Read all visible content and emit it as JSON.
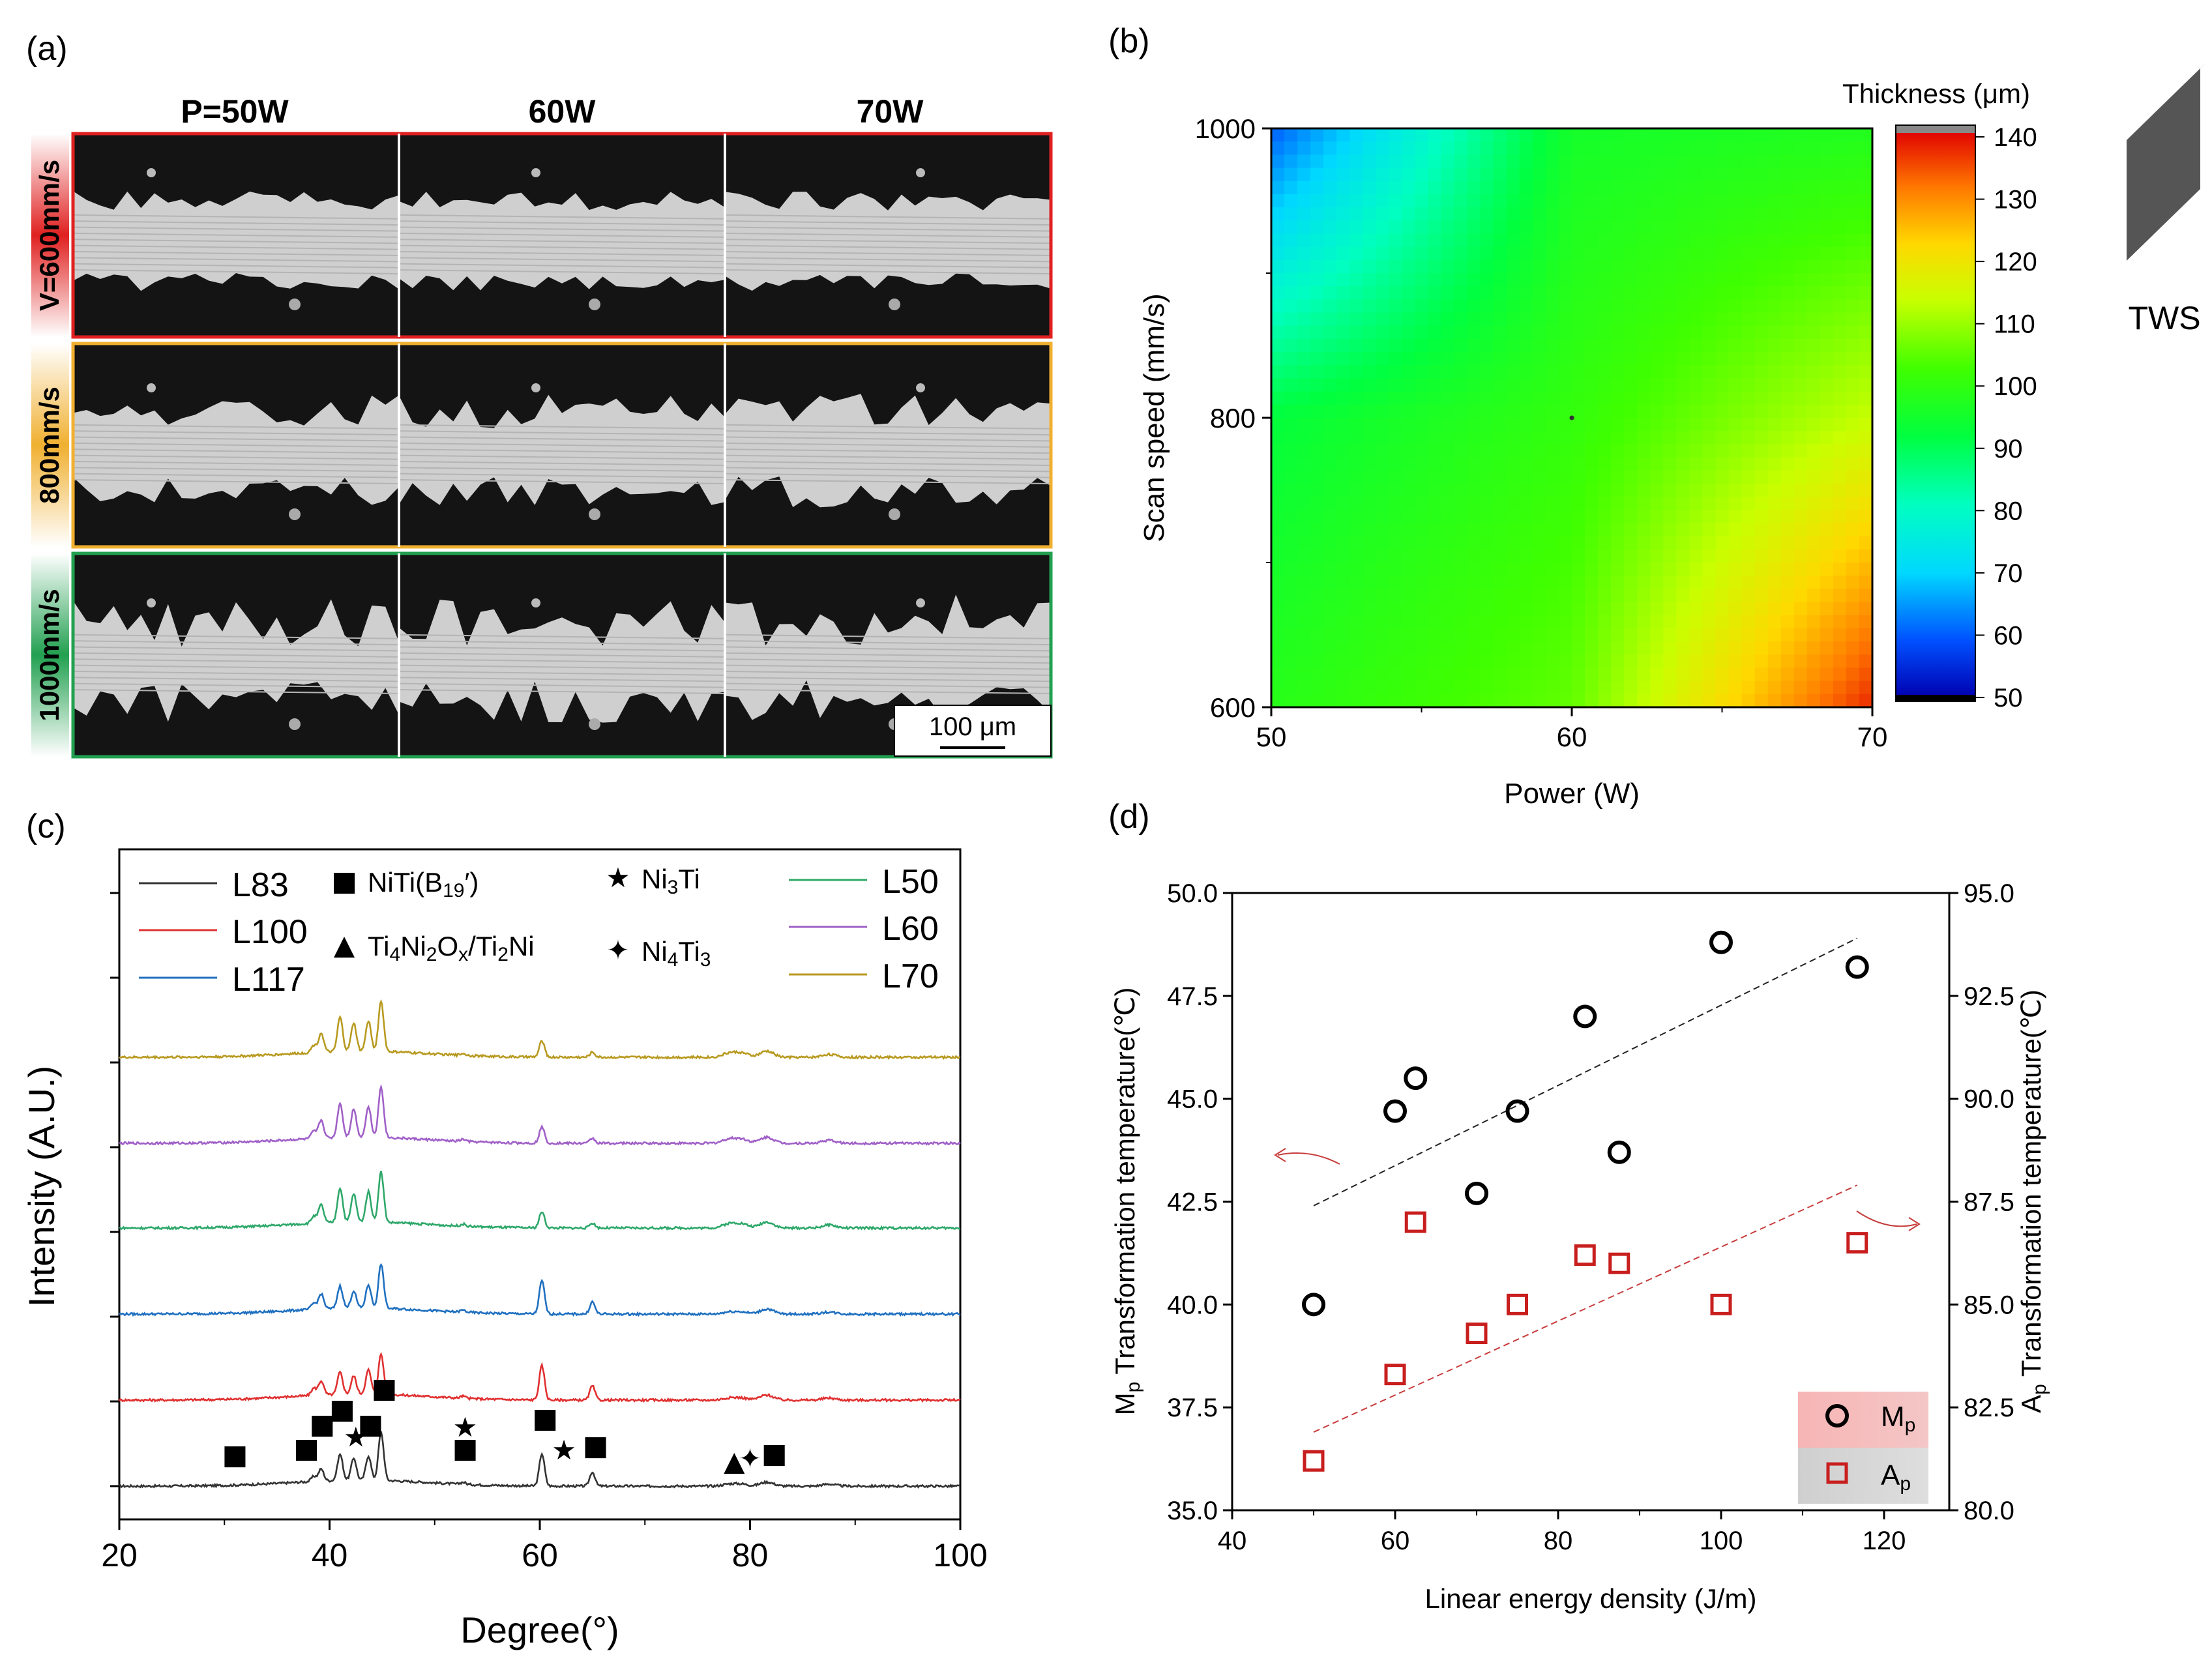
{
  "chart_data": [
    {
      "panel": "(a)",
      "type": "image-grid",
      "column_headers": [
        "P=50W",
        "60W",
        "70W"
      ],
      "row_headers": [
        {
          "label": "V=600mm/s",
          "color": "#e02020"
        },
        {
          "label": "800mm/s",
          "color": "#f0b030"
        },
        {
          "label": "1000mm/s",
          "color": "#22a050"
        }
      ],
      "scale_bar": "100 μm"
    },
    {
      "panel": "(b)",
      "type": "heatmap",
      "xlabel": "Power (W)",
      "ylabel": "Scan speed (mm/s)",
      "x_ticks": [
        50,
        60,
        70
      ],
      "y_ticks": [
        600,
        800,
        1000
      ],
      "xlim": [
        50,
        70
      ],
      "ylim": [
        600,
        1000
      ],
      "colorbar_title": "Thickness (μm)",
      "colorbar_ticks": [
        50,
        60,
        70,
        80,
        90,
        100,
        110,
        120,
        130,
        140
      ],
      "colorbar_range": [
        50,
        140
      ],
      "corner_values": {
        "p50_v600": 98,
        "p60_v600": 105,
        "p70_v600": 137,
        "p50_v800": 92,
        "p60_v800": 100,
        "p70_v800": 113,
        "p50_v1000": 60,
        "p60_v1000": 95,
        "p70_v1000": 97
      },
      "side_label": "TWS"
    },
    {
      "panel": "(c)",
      "type": "line",
      "xlabel": "Degree(°)",
      "ylabel": "Intensity (A.U.)",
      "xlim": [
        20,
        100
      ],
      "x_ticks": [
        20,
        40,
        60,
        80,
        100
      ],
      "peaks": [
        38.5,
        39.2,
        41.0,
        42.3,
        43.7,
        44.9,
        52.7,
        60.2,
        65.0,
        78.0,
        79.2,
        81.6,
        87.5
      ],
      "series": [
        {
          "name": "L83",
          "color": "#333333",
          "peak_heights": [
            5,
            12,
            26,
            22,
            24,
            48,
            2,
            32,
            14,
            2,
            2,
            4,
            2
          ]
        },
        {
          "name": "L100",
          "color": "#e03030",
          "peak_heights": [
            7,
            14,
            22,
            18,
            24,
            40,
            2,
            34,
            14,
            2,
            2,
            5,
            2
          ]
        },
        {
          "name": "L117",
          "color": "#2070c0",
          "peak_heights": [
            6,
            15,
            22,
            17,
            23,
            44,
            2,
            33,
            12,
            2,
            2,
            5,
            2
          ]
        },
        {
          "name": "L50",
          "color": "#2ea86a",
          "peak_heights": [
            7,
            18,
            34,
            28,
            30,
            50,
            2,
            16,
            5,
            4,
            4,
            6,
            3
          ]
        },
        {
          "name": "L60",
          "color": "#a060c8",
          "peak_heights": [
            7,
            18,
            34,
            28,
            30,
            50,
            2,
            16,
            5,
            4,
            4,
            6,
            3
          ]
        },
        {
          "name": "L70",
          "color": "#b89a20",
          "peak_heights": [
            7,
            19,
            34,
            28,
            30,
            50,
            2,
            16,
            5,
            4,
            4,
            6,
            3
          ]
        }
      ],
      "phase_legend": [
        {
          "symbol": "■",
          "label": "NiTi(B19′)"
        },
        {
          "symbol": "★",
          "label": "Ni3Ti"
        },
        {
          "symbol": "▲",
          "label": "Ti4Ni2Ox/Ti2Ni"
        },
        {
          "symbol": "✦",
          "label": "Ni4Ti3"
        }
      ],
      "phase_markers": [
        {
          "symbol": "■",
          "x": 31.0
        },
        {
          "symbol": "■",
          "x": 37.8
        },
        {
          "symbol": "■",
          "x": 39.3
        },
        {
          "symbol": "■",
          "x": 41.2
        },
        {
          "symbol": "★",
          "x": 42.5
        },
        {
          "symbol": "■",
          "x": 43.9
        },
        {
          "symbol": "■",
          "x": 45.2
        },
        {
          "symbol": "★",
          "x": 52.9
        },
        {
          "symbol": "■",
          "x": 52.9
        },
        {
          "symbol": "■",
          "x": 60.5
        },
        {
          "symbol": "★",
          "x": 62.3
        },
        {
          "symbol": "■",
          "x": 65.3
        },
        {
          "symbol": "▲",
          "x": 78.5
        },
        {
          "symbol": "✦",
          "x": 80.0
        },
        {
          "symbol": "■",
          "x": 82.3
        }
      ]
    },
    {
      "panel": "(d)",
      "type": "scatter",
      "xlabel": "Linear energy density (J/m)",
      "xlim": [
        40,
        128
      ],
      "x_ticks": [
        40,
        60,
        80,
        100,
        120
      ],
      "left_axis": {
        "label": "Mp Transformation temperature(℃)",
        "ylim": [
          35,
          50
        ],
        "ticks": [
          "35.0",
          "37.5",
          "40.0",
          "42.5",
          "45.0",
          "47.5",
          "50.0"
        ]
      },
      "right_axis": {
        "label": "Ap Transformation temperature(℃)",
        "ylim": [
          80,
          95
        ],
        "ticks": [
          "80.0",
          "82.5",
          "85.0",
          "87.5",
          "90.0",
          "92.5",
          "95.0"
        ]
      },
      "series": [
        {
          "name": "Mp",
          "marker": "circle",
          "color": "#000000",
          "axis": "left",
          "x": [
            50,
            60,
            62.5,
            70,
            75,
            83.3,
            87.5,
            100,
            116.7
          ],
          "y": [
            40.0,
            44.7,
            45.5,
            42.7,
            44.7,
            47.0,
            43.7,
            48.8,
            48.2
          ],
          "fit": {
            "x": [
              50,
              116.7
            ],
            "y": [
              42.4,
              48.9
            ]
          }
        },
        {
          "name": "Ap",
          "marker": "square",
          "color": "#c81e1e",
          "axis": "right",
          "x": [
            50,
            60,
            62.5,
            70,
            75,
            83.3,
            87.5,
            100,
            116.7
          ],
          "y": [
            81.2,
            83.3,
            87.0,
            84.3,
            85.0,
            86.2,
            86.0,
            85.0,
            86.5
          ],
          "fit": {
            "x": [
              50,
              116.7
            ],
            "y": [
              81.9,
              87.9
            ]
          }
        }
      ]
    }
  ]
}
